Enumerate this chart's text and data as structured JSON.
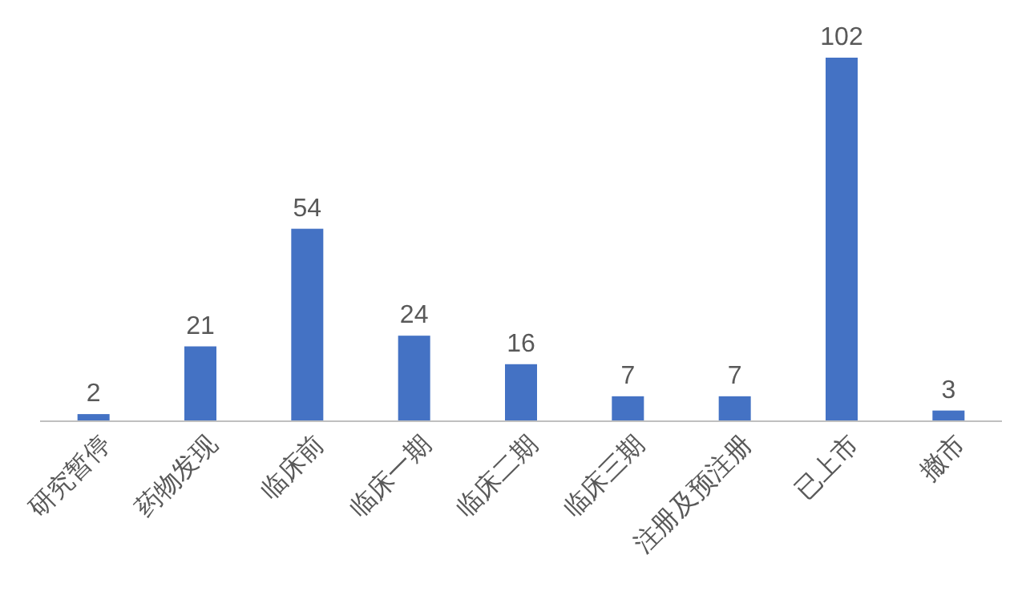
{
  "chart_data": {
    "type": "bar",
    "categories": [
      "研究暂停",
      "药物发现",
      "临床前",
      "临床一期",
      "临床二期",
      "临床三期",
      "注册及预注册",
      "已上市",
      "撤市"
    ],
    "values": [
      2,
      21,
      54,
      24,
      16,
      7,
      7,
      102,
      3
    ],
    "color": "#4472c4",
    "data_labels": true
  }
}
